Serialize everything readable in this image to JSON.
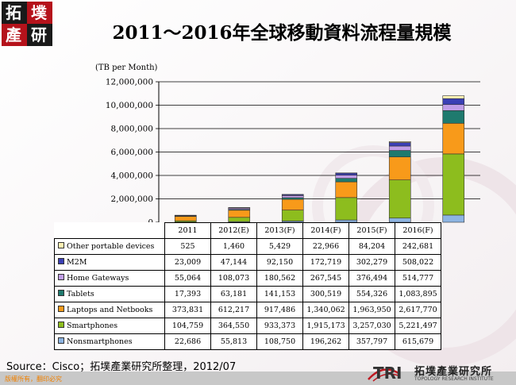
{
  "logo": {
    "chars": [
      "拓",
      "墣",
      "產",
      "研"
    ]
  },
  "title": "2011～2016年全球移動資料流程量規模",
  "source": "Source：Cisco；拓墣產業研究所整理，2012/07",
  "copyright": "版權所有，翻印必究",
  "footer_logo": {
    "mark": "TRI",
    "name": "拓墣產業研究所",
    "subtitle": "TOPOLOGY RESEARCH INSTITUTE"
  },
  "chart_data": {
    "type": "bar",
    "stacked": true,
    "title": "2011～2016年全球移動資料流程量規模",
    "ylabel": "(TB per Month)",
    "ylim": [
      0,
      12000000
    ],
    "yticks": [
      "0",
      "2,000,000",
      "4,000,000",
      "6,000,000",
      "8,000,000",
      "10,000,000",
      "12,000,000"
    ],
    "ytick_values": [
      0,
      2000000,
      4000000,
      6000000,
      8000000,
      10000000,
      12000000
    ],
    "grid": true,
    "legend": "table-below",
    "categories": [
      "2011",
      "2012(E)",
      "2013(F)",
      "2014(F)",
      "2015(F)",
      "2016(F)"
    ],
    "series": [
      {
        "name": "Nonsmartphones",
        "color": "#8db4e2",
        "values": [
          22686,
          55813,
          108750,
          196262,
          357797,
          615679
        ],
        "labels": [
          "22,686",
          "55,813",
          "108,750",
          "196,262",
          "357,797",
          "615,679"
        ]
      },
      {
        "name": "Smartphones",
        "color": "#8dbd1e",
        "values": [
          104759,
          364550,
          933373,
          1915173,
          3257030,
          5221497
        ],
        "labels": [
          "104,759",
          "364,550",
          "933,373",
          "1,915,173",
          "3,257,030",
          "5,221,497"
        ]
      },
      {
        "name": "Laptops and Netbooks",
        "color": "#f89a1a",
        "values": [
          373831,
          612217,
          917486,
          1340062,
          1963950,
          2617770
        ],
        "labels": [
          "373,831",
          "612,217",
          "917,486",
          "1,340,062",
          "1,963,950",
          "2,617,770"
        ]
      },
      {
        "name": "Tablets",
        "color": "#1f7a6e",
        "values": [
          17393,
          63181,
          141153,
          300519,
          554326,
          1083895
        ],
        "labels": [
          "17,393",
          "63,181",
          "141,153",
          "300,519",
          "554,326",
          "1,083,895"
        ]
      },
      {
        "name": "Home Gateways",
        "color": "#c09ee8",
        "values": [
          55064,
          108073,
          180562,
          267545,
          376494,
          514777
        ],
        "labels": [
          "55,064",
          "108,073",
          "180,562",
          "267,545",
          "376,494",
          "514,777"
        ]
      },
      {
        "name": "M2M",
        "color": "#3a3fb5",
        "values": [
          23009,
          47144,
          92150,
          172719,
          302279,
          508022
        ],
        "labels": [
          "23,009",
          "47,144",
          "92,150",
          "172,719",
          "302,279",
          "508,022"
        ]
      },
      {
        "name": "Other portable devices",
        "color": "#fff2b3",
        "values": [
          525,
          1460,
          5429,
          22966,
          84204,
          242681
        ],
        "labels": [
          "525",
          "1,460",
          "5,429",
          "22,966",
          "84,204",
          "242,681"
        ]
      }
    ]
  }
}
